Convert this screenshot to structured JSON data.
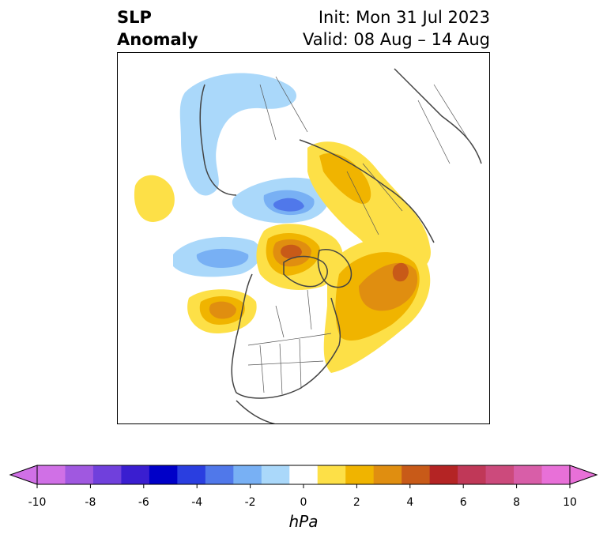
{
  "title": {
    "left_line1": "SLP",
    "left_line2": "Anomaly",
    "right_line1": "Init: Mon 31 Jul 2023",
    "right_line2": "Valid: 08 Aug – 14 Aug"
  },
  "colorbar": {
    "unit": "hPa",
    "ticks": [
      "-10",
      "-8",
      "-6",
      "-4",
      "-2",
      "0",
      "2",
      "4",
      "6",
      "8",
      "10"
    ],
    "levels": [
      -10,
      -9,
      -8,
      -7,
      -6,
      -5,
      -4,
      -3,
      -2,
      -1,
      1,
      2,
      3,
      4,
      5,
      6,
      7,
      8,
      9,
      10
    ],
    "colors": [
      "#d070e6",
      "#a058e0",
      "#7040dc",
      "#3a1ed0",
      "#0000c8",
      "#2a3ee0",
      "#5078ea",
      "#78b0f4",
      "#aad8fa",
      "#ffffff",
      "#fde047",
      "#f0b400",
      "#e08e10",
      "#c85a18",
      "#b42424",
      "#c03858",
      "#cc4a7c",
      "#d85ea8",
      "#e870d8"
    ],
    "extend_colors": {
      "low": "#d070e6",
      "high": "#e870d8"
    }
  }
}
